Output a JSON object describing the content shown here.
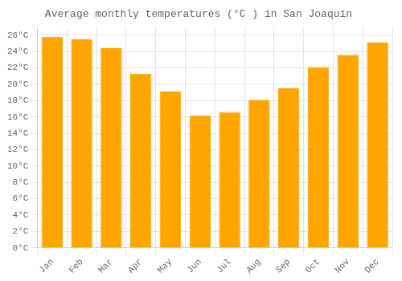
{
  "chart_data": {
    "type": "bar",
    "title": "Average monthly temperatures (°C ) in San Joaquín",
    "categories": [
      "Jan",
      "Feb",
      "Mar",
      "Apr",
      "May",
      "Jun",
      "Jul",
      "Aug",
      "Sep",
      "Oct",
      "Nov",
      "Dec"
    ],
    "values": [
      25.8,
      25.5,
      24.4,
      21.3,
      19.1,
      16.2,
      16.6,
      18.1,
      19.5,
      22.1,
      23.6,
      25.1
    ],
    "color": "#FFA500",
    "ylim": [
      0,
      27
    ],
    "yticks": [
      {
        "value": 0,
        "label": "0°C"
      },
      {
        "value": 2,
        "label": "2°C"
      },
      {
        "value": 4,
        "label": "4°C"
      },
      {
        "value": 6,
        "label": "6°C"
      },
      {
        "value": 8,
        "label": "8°C"
      },
      {
        "value": 10,
        "label": "10°C"
      },
      {
        "value": 12,
        "label": "12°C"
      },
      {
        "value": 14,
        "label": "14°C"
      },
      {
        "value": 16,
        "label": "16°C"
      },
      {
        "value": 18,
        "label": "18°C"
      },
      {
        "value": 20,
        "label": "20°C"
      },
      {
        "value": 22,
        "label": "22°C"
      },
      {
        "value": 24,
        "label": "24°C"
      },
      {
        "value": 26,
        "label": "26°C"
      }
    ],
    "grid": true
  }
}
